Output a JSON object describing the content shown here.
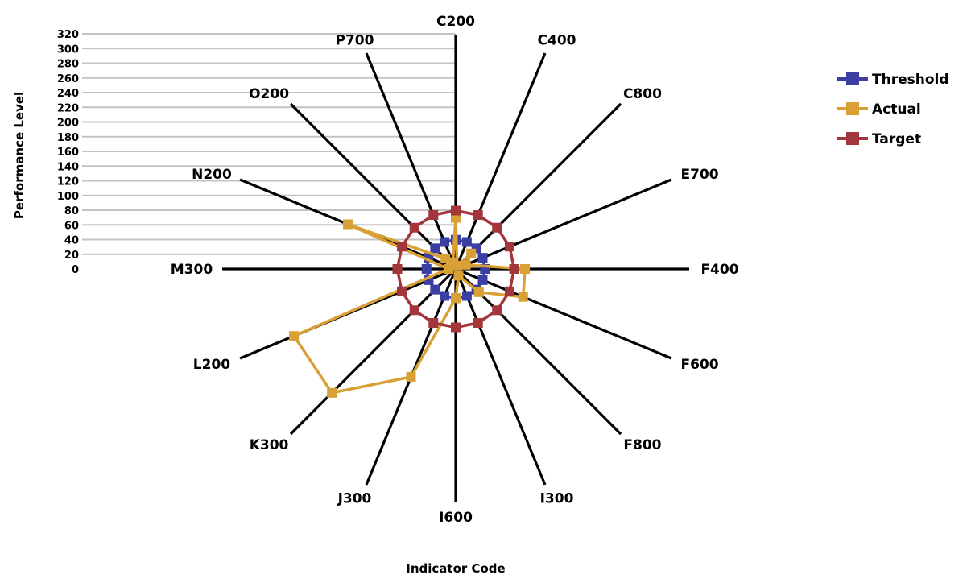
{
  "chart_data": {
    "type": "radar",
    "title": "",
    "xlabel": "Indicator Code",
    "ylabel": "Performance Level",
    "rlim": [
      0,
      320
    ],
    "r_ticks": [
      0,
      20,
      40,
      60,
      80,
      100,
      120,
      140,
      160,
      180,
      200,
      220,
      240,
      260,
      280,
      300,
      320
    ],
    "grid": true,
    "legend_position": "right",
    "categories": [
      "C200",
      "C400",
      "C800",
      "E700",
      "F400",
      "F600",
      "F800",
      "I300",
      "I600",
      "J300",
      "K300",
      "L200",
      "M300",
      "N200",
      "O200",
      "P700"
    ],
    "series": [
      {
        "name": "Threshold",
        "color": "#3b3ea3",
        "values": [
          40,
          40,
          40,
          40,
          40,
          40,
          40,
          40,
          40,
          40,
          40,
          40,
          40,
          40,
          40,
          40
        ]
      },
      {
        "name": "Actual",
        "color": "#d9a036",
        "values": [
          70,
          5,
          30,
          15,
          95,
          100,
          45,
          10,
          40,
          160,
          240,
          240,
          10,
          160,
          20,
          10
        ]
      },
      {
        "name": "Target",
        "color": "#a3363b",
        "values": [
          80,
          80,
          80,
          80,
          80,
          80,
          80,
          80,
          80,
          80,
          80,
          80,
          80,
          80,
          80,
          80
        ]
      }
    ]
  }
}
